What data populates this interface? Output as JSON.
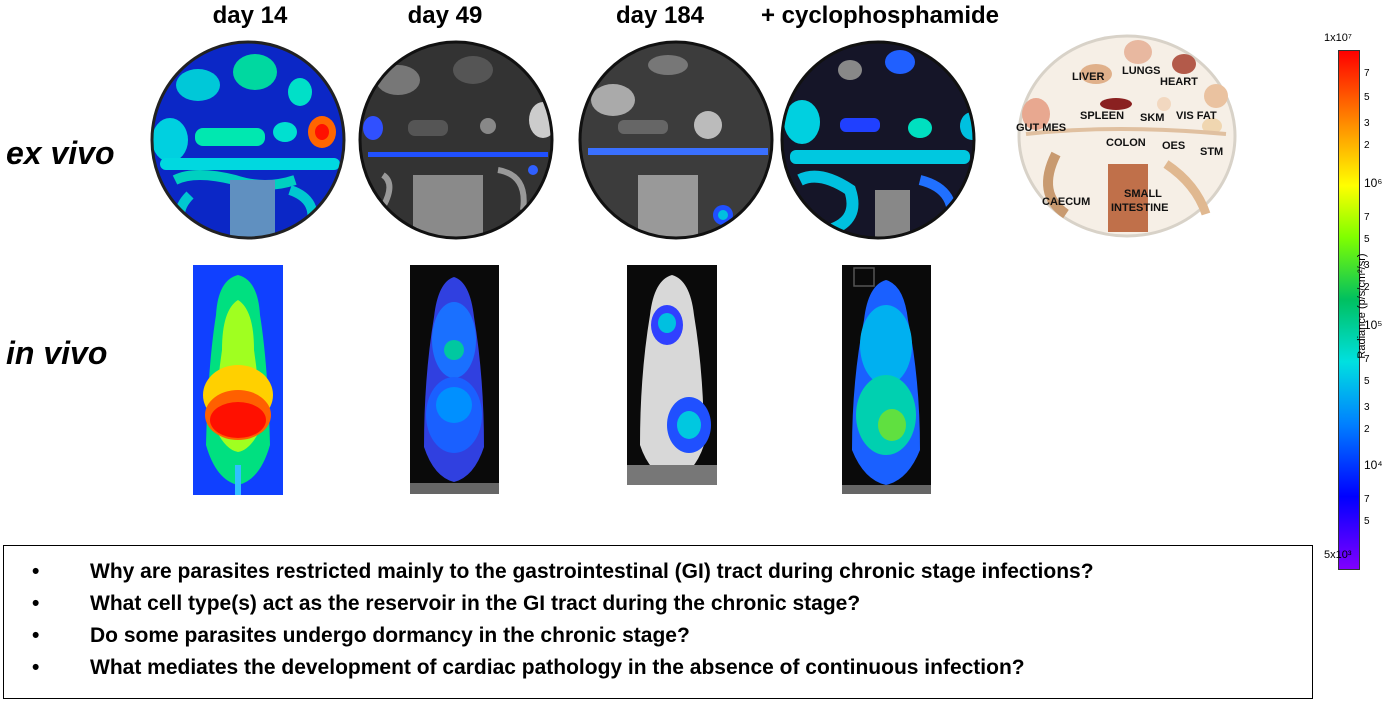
{
  "columns": [
    "day 14",
    "day 49",
    "day 184",
    "+ cyclophosphamide"
  ],
  "rows": [
    "ex vivo",
    "in vivo"
  ],
  "organ_labels": {
    "liver": "LIVER",
    "lungs": "LUNGS",
    "heart": "HEART",
    "spleen": "SPLEEN",
    "skm": "SKM",
    "vis_fat": "VIS FAT",
    "gut_mes": "GUT MES",
    "colon": "COLON",
    "oes": "OES",
    "stm": "STM",
    "caecum": "CAECUM",
    "small_intestine_1": "SMALL",
    "small_intestine_2": "INTESTINE"
  },
  "colorbar": {
    "label": "Radiance (p/s/cm²/sr)",
    "max_label": "1x10⁷",
    "min_label": "5x10³",
    "decade_labels": [
      "10⁶",
      "10⁵",
      "10⁴"
    ],
    "minor_labels": [
      "7",
      "5",
      "3",
      "2"
    ],
    "colors": [
      "#ff0000",
      "#ff8c00",
      "#ffff00",
      "#7fff00",
      "#00c060",
      "#00e0e0",
      "#0080ff",
      "#0000ff",
      "#8000ff"
    ]
  },
  "questions": [
    "Why are parasites restricted mainly to the gastrointestinal (GI) tract during chronic stage infections?",
    "What cell type(s) act as the reservoir in the GI tract during the chronic stage?",
    "Do some parasites undergo dormancy in the chronic stage?",
    "What mediates the development of cardiac pathology in the absence of continuous infection?"
  ],
  "bullet_char": "•"
}
